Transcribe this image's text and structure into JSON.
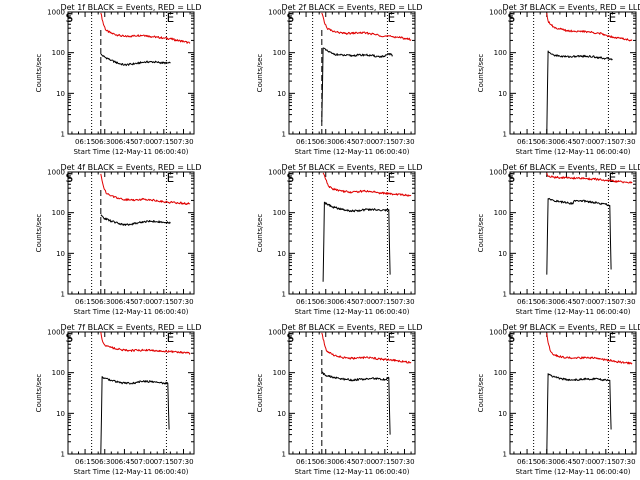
{
  "figure": {
    "colors": {
      "events": "#000000",
      "lld": "#e00000",
      "background": "#ffffff",
      "axes": "#000000"
    },
    "legend_note": "BLACK = Events, RED = LLD"
  },
  "chart_data": [
    {
      "type": "line",
      "title": "Det 1f BLACK = Events, RED = LLD",
      "xlabel": "Start Time (12-May-11 06:00:40)",
      "ylabel": "Counts/sec",
      "xlim": [
        "06:02",
        "07:38"
      ],
      "ylim": [
        1,
        1000
      ],
      "yscale": "log",
      "xticks": [
        "06:15",
        "06:30",
        "06:45",
        "07:00",
        "07:15",
        "07:30"
      ],
      "yticks": [
        "1",
        "10",
        "100",
        "1000"
      ],
      "markers": [
        {
          "label": "S",
          "x": "06:03"
        },
        {
          "label": "E",
          "x": "07:20"
        }
      ],
      "dotted_lines": [
        "06:20",
        "07:17"
      ],
      "dashed_lines": [
        "06:27"
      ],
      "series": [
        {
          "name": "RED = LLD",
          "color": "#e00000",
          "x": [
            "06:27",
            "06:29",
            "06:31",
            "06:35",
            "06:40",
            "06:45",
            "06:50",
            "06:55",
            "07:00",
            "07:05",
            "07:10",
            "07:15",
            "07:20",
            "07:25",
            "07:30",
            "07:35"
          ],
          "y": [
            950,
            500,
            350,
            300,
            270,
            250,
            255,
            265,
            270,
            250,
            240,
            230,
            220,
            200,
            190,
            170
          ]
        },
        {
          "name": "BLACK = Events",
          "color": "#000000",
          "x": [
            "06:27",
            "06:30",
            "06:35",
            "06:40",
            "06:45",
            "06:50",
            "06:55",
            "07:00",
            "07:05",
            "07:10",
            "07:15",
            "07:20"
          ],
          "y": [
            90,
            78,
            65,
            55,
            50,
            52,
            55,
            58,
            60,
            58,
            56,
            55
          ]
        }
      ]
    },
    {
      "type": "line",
      "title": "Det 2f BLACK = Events, RED = LLD",
      "xlabel": "Start Time (12-May-11 06:00:40)",
      "ylabel": "Counts/sec",
      "xlim": [
        "06:02",
        "07:38"
      ],
      "ylim": [
        1,
        1000
      ],
      "yscale": "log",
      "xticks": [
        "06:15",
        "06:30",
        "06:45",
        "07:00",
        "07:15",
        "07:30"
      ],
      "yticks": [
        "1",
        "10",
        "100",
        "1000"
      ],
      "markers": [
        {
          "label": "S",
          "x": "06:03"
        },
        {
          "label": "E",
          "x": "07:20"
        }
      ],
      "dotted_lines": [
        "06:20",
        "07:17"
      ],
      "dashed_lines": [
        "06:27"
      ],
      "series": [
        {
          "name": "RED = LLD",
          "color": "#e00000",
          "x": [
            "06:27",
            "06:29",
            "06:31",
            "06:35",
            "06:40",
            "06:45",
            "06:50",
            "06:55",
            "07:00",
            "07:05",
            "07:10",
            "07:15",
            "07:20",
            "07:25",
            "07:30",
            "07:35"
          ],
          "y": [
            950,
            550,
            400,
            340,
            310,
            295,
            300,
            310,
            305,
            290,
            270,
            255,
            250,
            240,
            225,
            210
          ]
        },
        {
          "name": "BLACK = Events",
          "color": "#000000",
          "x": [
            "06:27",
            "06:28",
            "06:30",
            "06:35",
            "06:40",
            "06:45",
            "06:50",
            "06:55",
            "07:00",
            "07:05",
            "07:10",
            "07:15",
            "07:18",
            "07:21"
          ],
          "y": [
            2,
            130,
            115,
            95,
            88,
            85,
            85,
            87,
            88,
            85,
            80,
            80,
            95,
            85
          ]
        }
      ]
    },
    {
      "type": "line",
      "title": "Det 3f BLACK = Events, RED = LLD",
      "xlabel": "Start Time (12-May-11 06:00:40)",
      "ylabel": "Counts/sec",
      "xlim": [
        "06:02",
        "07:38"
      ],
      "ylim": [
        1,
        1000
      ],
      "yscale": "log",
      "xticks": [
        "06:15",
        "06:30",
        "06:45",
        "07:00",
        "07:15",
        "07:30"
      ],
      "yticks": [
        "1",
        "10",
        "100",
        "1000"
      ],
      "markers": [
        {
          "label": "S",
          "x": "06:03"
        },
        {
          "label": "E",
          "x": "07:20"
        }
      ],
      "dotted_lines": [
        "06:20",
        "07:17"
      ],
      "dashed_lines": [],
      "series": [
        {
          "name": "RED = LLD",
          "color": "#e00000",
          "x": [
            "06:30",
            "06:31",
            "06:35",
            "06:40",
            "06:45",
            "06:50",
            "06:55",
            "07:00",
            "07:05",
            "07:10",
            "07:15",
            "07:20",
            "07:25",
            "07:30",
            "07:35"
          ],
          "y": [
            950,
            600,
            430,
            380,
            350,
            340,
            335,
            330,
            315,
            300,
            270,
            245,
            230,
            215,
            200
          ]
        },
        {
          "name": "BLACK = Events",
          "color": "#000000",
          "x": [
            "06:30",
            "06:31",
            "06:33",
            "06:35",
            "06:40",
            "06:45",
            "06:50",
            "06:55",
            "07:00",
            "07:05",
            "07:10",
            "07:15",
            "07:20"
          ],
          "y": [
            1,
            110,
            95,
            88,
            82,
            80,
            80,
            82,
            82,
            80,
            76,
            72,
            70
          ]
        }
      ]
    },
    {
      "type": "line",
      "title": "Det 4f BLACK = Events, RED = LLD",
      "xlabel": "Start Time (12-May-11 06:00:40)",
      "ylabel": "Counts/sec",
      "xlim": [
        "06:02",
        "07:38"
      ],
      "ylim": [
        1,
        1000
      ],
      "yscale": "log",
      "xticks": [
        "06:15",
        "06:30",
        "06:45",
        "07:00",
        "07:15",
        "07:30"
      ],
      "yticks": [
        "1",
        "10",
        "100",
        "1000"
      ],
      "markers": [
        {
          "label": "S",
          "x": "06:03"
        },
        {
          "label": "E",
          "x": "07:20"
        }
      ],
      "dotted_lines": [
        "06:20",
        "07:17"
      ],
      "dashed_lines": [
        "06:27"
      ],
      "series": [
        {
          "name": "RED = LLD",
          "color": "#e00000",
          "x": [
            "06:27",
            "06:29",
            "06:31",
            "06:35",
            "06:40",
            "06:45",
            "06:50",
            "06:55",
            "07:00",
            "07:05",
            "07:10",
            "07:15",
            "07:20",
            "07:25",
            "07:30",
            "07:35"
          ],
          "y": [
            900,
            450,
            300,
            260,
            230,
            210,
            205,
            210,
            215,
            210,
            195,
            185,
            180,
            175,
            170,
            165
          ]
        },
        {
          "name": "BLACK = Events",
          "color": "#000000",
          "x": [
            "06:27",
            "06:30",
            "06:35",
            "06:40",
            "06:45",
            "06:50",
            "06:55",
            "07:00",
            "07:05",
            "07:10",
            "07:15",
            "07:20"
          ],
          "y": [
            85,
            72,
            62,
            55,
            50,
            52,
            56,
            60,
            62,
            60,
            58,
            55
          ]
        }
      ]
    },
    {
      "type": "line",
      "title": "Det 5f BLACK = Events, RED = LLD",
      "xlabel": "Start Time (12-May-11 06:00:40)",
      "ylabel": "Counts/sec",
      "xlim": [
        "06:02",
        "07:38"
      ],
      "ylim": [
        1,
        1000
      ],
      "yscale": "log",
      "xticks": [
        "06:15",
        "06:30",
        "06:45",
        "07:00",
        "07:15",
        "07:30"
      ],
      "yticks": [
        "1",
        "10",
        "100",
        "1000"
      ],
      "markers": [
        {
          "label": "S",
          "x": "06:03"
        },
        {
          "label": "E",
          "x": "07:20"
        }
      ],
      "dotted_lines": [
        "06:20",
        "07:17"
      ],
      "dashed_lines": [],
      "series": [
        {
          "name": "RED = LLD",
          "color": "#e00000",
          "x": [
            "06:28",
            "06:30",
            "06:32",
            "06:35",
            "06:40",
            "06:45",
            "06:50",
            "06:55",
            "07:00",
            "07:05",
            "07:10",
            "07:15",
            "07:20",
            "07:25",
            "07:30",
            "07:35"
          ],
          "y": [
            950,
            650,
            450,
            390,
            350,
            330,
            320,
            330,
            340,
            330,
            310,
            300,
            290,
            280,
            270,
            265
          ]
        },
        {
          "name": "BLACK = Events",
          "color": "#000000",
          "x": [
            "06:28",
            "06:29",
            "06:31",
            "06:35",
            "06:40",
            "06:45",
            "06:50",
            "06:55",
            "07:00",
            "07:05",
            "07:10",
            "07:15",
            "07:18",
            "07:19"
          ],
          "y": [
            2,
            180,
            160,
            140,
            125,
            115,
            110,
            112,
            118,
            120,
            118,
            115,
            118,
            3
          ]
        }
      ]
    },
    {
      "type": "line",
      "title": "Det 6f BLACK = Events, RED = LLD",
      "xlabel": "Start Time (12-May-11 06:00:40)",
      "ylabel": "Counts/sec",
      "xlim": [
        "06:02",
        "07:38"
      ],
      "ylim": [
        1,
        1000
      ],
      "yscale": "log",
      "xticks": [
        "06:15",
        "06:30",
        "06:45",
        "07:00",
        "07:15",
        "07:30"
      ],
      "yticks": [
        "1",
        "10",
        "100",
        "1000"
      ],
      "markers": [
        {
          "label": "S",
          "x": "06:03"
        },
        {
          "label": "E",
          "x": "07:20"
        }
      ],
      "dotted_lines": [
        "06:20",
        "07:17"
      ],
      "dashed_lines": [],
      "series": [
        {
          "name": "RED = LLD",
          "color": "#e00000",
          "x": [
            "06:30",
            "06:31",
            "06:35",
            "06:40",
            "06:45",
            "06:50",
            "06:55",
            "07:00",
            "07:05",
            "07:10",
            "07:15",
            "07:20",
            "07:25",
            "07:30",
            "07:35"
          ],
          "y": [
            950,
            780,
            750,
            730,
            720,
            710,
            700,
            690,
            670,
            650,
            620,
            600,
            580,
            560,
            540
          ]
        },
        {
          "name": "BLACK = Events",
          "color": "#000000",
          "x": [
            "06:30",
            "06:31",
            "06:35",
            "06:40",
            "06:45",
            "06:50",
            "06:51",
            "06:55",
            "07:00",
            "07:05",
            "07:10",
            "07:15",
            "07:18",
            "07:19"
          ],
          "y": [
            3,
            220,
            200,
            185,
            175,
            165,
            200,
            195,
            190,
            180,
            170,
            160,
            150,
            4
          ]
        }
      ]
    },
    {
      "type": "line",
      "title": "Det 7f BLACK = Events, RED = LLD",
      "xlabel": "Start Time (12-May-11 06:00:40)",
      "ylabel": "Counts/sec",
      "xlim": [
        "06:02",
        "07:38"
      ],
      "ylim": [
        1,
        1000
      ],
      "yscale": "log",
      "xticks": [
        "06:15",
        "06:30",
        "06:45",
        "07:00",
        "07:15",
        "07:30"
      ],
      "yticks": [
        "1",
        "10",
        "100",
        "1000"
      ],
      "markers": [
        {
          "label": "S",
          "x": "06:03"
        },
        {
          "label": "E",
          "x": "07:20"
        }
      ],
      "dotted_lines": [
        "06:20",
        "07:17"
      ],
      "dashed_lines": [],
      "series": [
        {
          "name": "RED = LLD",
          "color": "#e00000",
          "x": [
            "06:27",
            "06:28",
            "06:30",
            "06:35",
            "06:40",
            "06:45",
            "06:50",
            "06:55",
            "07:00",
            "07:05",
            "07:10",
            "07:15",
            "07:20",
            "07:25",
            "07:30",
            "07:35"
          ],
          "y": [
            1000,
            650,
            480,
            420,
            380,
            360,
            350,
            355,
            360,
            355,
            345,
            340,
            330,
            320,
            310,
            300
          ]
        },
        {
          "name": "BLACK = Events",
          "color": "#000000",
          "x": [
            "06:27",
            "06:28",
            "06:30",
            "06:35",
            "06:40",
            "06:45",
            "06:50",
            "06:55",
            "07:00",
            "07:05",
            "07:10",
            "07:15",
            "07:18",
            "07:19"
          ],
          "y": [
            1,
            80,
            72,
            65,
            58,
            55,
            55,
            58,
            62,
            60,
            58,
            55,
            55,
            4
          ]
        }
      ]
    },
    {
      "type": "line",
      "title": "Det 8f BLACK = Events, RED = LLD",
      "xlabel": "Start Time (12-May-11 06:00:40)",
      "ylabel": "Counts/sec",
      "xlim": [
        "06:02",
        "07:38"
      ],
      "ylim": [
        1,
        1000
      ],
      "yscale": "log",
      "xticks": [
        "06:15",
        "06:30",
        "06:45",
        "07:00",
        "07:15",
        "07:30"
      ],
      "yticks": [
        "1",
        "10",
        "100",
        "1000"
      ],
      "markers": [
        {
          "label": "S",
          "x": "06:03"
        },
        {
          "label": "E",
          "x": "07:20"
        }
      ],
      "dotted_lines": [
        "06:20",
        "07:17"
      ],
      "dashed_lines": [
        "06:27"
      ],
      "series": [
        {
          "name": "RED = LLD",
          "color": "#e00000",
          "x": [
            "06:27",
            "06:29",
            "06:31",
            "06:35",
            "06:40",
            "06:45",
            "06:50",
            "06:55",
            "07:00",
            "07:05",
            "07:10",
            "07:15",
            "07:20",
            "07:25",
            "07:30",
            "07:35"
          ],
          "y": [
            950,
            500,
            330,
            280,
            250,
            230,
            225,
            230,
            235,
            230,
            220,
            210,
            205,
            195,
            185,
            175
          ]
        },
        {
          "name": "BLACK = Events",
          "color": "#000000",
          "x": [
            "06:27",
            "06:30",
            "06:35",
            "06:40",
            "06:45",
            "06:50",
            "06:55",
            "07:00",
            "07:05",
            "07:10",
            "07:15",
            "07:18",
            "07:19"
          ],
          "y": [
            100,
            85,
            78,
            72,
            68,
            66,
            68,
            70,
            72,
            70,
            68,
            75,
            3
          ]
        }
      ]
    },
    {
      "type": "line",
      "title": "Det 9f BLACK = Events, RED = LLD",
      "xlabel": "Start Time (12-May-11 06:00:40)",
      "ylabel": "Counts/sec",
      "xlim": [
        "06:02",
        "07:38"
      ],
      "ylim": [
        1,
        1000
      ],
      "yscale": "log",
      "xticks": [
        "06:15",
        "06:30",
        "06:45",
        "07:00",
        "07:15",
        "07:30"
      ],
      "yticks": [
        "1",
        "10",
        "100",
        "1000"
      ],
      "markers": [
        {
          "label": "S",
          "x": "06:03"
        },
        {
          "label": "E",
          "x": "07:20"
        }
      ],
      "dotted_lines": [
        "06:20",
        "07:17"
      ],
      "dashed_lines": [],
      "series": [
        {
          "name": "RED = LLD",
          "color": "#e00000",
          "x": [
            "06:30",
            "06:31",
            "06:33",
            "06:35",
            "06:40",
            "06:45",
            "06:50",
            "06:55",
            "07:00",
            "07:05",
            "07:10",
            "07:15",
            "07:20",
            "07:25",
            "07:30",
            "07:35"
          ],
          "y": [
            950,
            550,
            330,
            280,
            250,
            235,
            225,
            230,
            235,
            230,
            215,
            205,
            195,
            185,
            175,
            170
          ]
        },
        {
          "name": "BLACK = Events",
          "color": "#000000",
          "x": [
            "06:30",
            "06:31",
            "06:35",
            "06:40",
            "06:45",
            "06:50",
            "06:55",
            "07:00",
            "07:05",
            "07:10",
            "07:15",
            "07:18",
            "07:19"
          ],
          "y": [
            1,
            95,
            80,
            72,
            68,
            66,
            68,
            70,
            70,
            68,
            66,
            65,
            4
          ]
        }
      ]
    }
  ]
}
